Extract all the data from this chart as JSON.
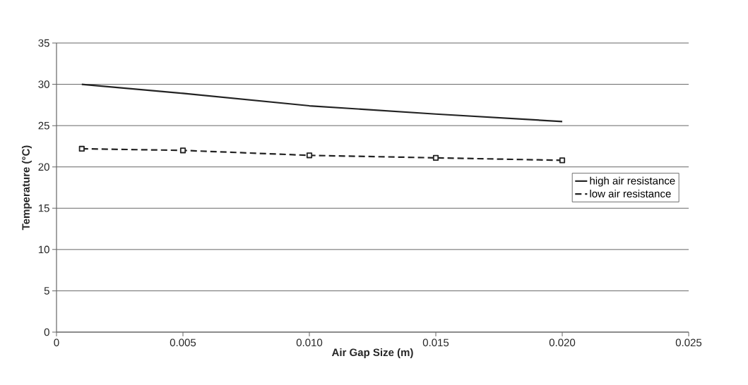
{
  "chart_data": {
    "type": "line",
    "xlabel": "Air Gap Size (m)",
    "ylabel": "Temperature (°C)",
    "x": [
      0.001,
      0.005,
      0.01,
      0.015,
      0.02
    ],
    "series": [
      {
        "name": "high air resistance",
        "color": "#222222",
        "values": [
          30.0,
          28.9,
          27.4,
          26.4,
          25.5
        ],
        "line_style": "solid",
        "marker": "none"
      },
      {
        "name": "low air resistance",
        "color": "#222222",
        "values": [
          22.2,
          22.0,
          21.4,
          21.1,
          20.8
        ],
        "line_style": "dashed",
        "marker": "square"
      }
    ],
    "xlim": [
      0,
      0.025
    ],
    "ylim": [
      0,
      35
    ],
    "xticks": [
      0,
      {
        "value": 0.005,
        "label": "0.005"
      },
      {
        "value": 0.01,
        "label": "0.010"
      },
      {
        "value": 0.015,
        "label": "0.015"
      },
      {
        "value": 0.02,
        "label": "0.020"
      },
      {
        "value": 0.025,
        "label": "0.025"
      }
    ],
    "yticks": [
      0,
      5,
      10,
      15,
      20,
      25,
      30,
      35
    ],
    "grid": "y",
    "legend": "right"
  }
}
